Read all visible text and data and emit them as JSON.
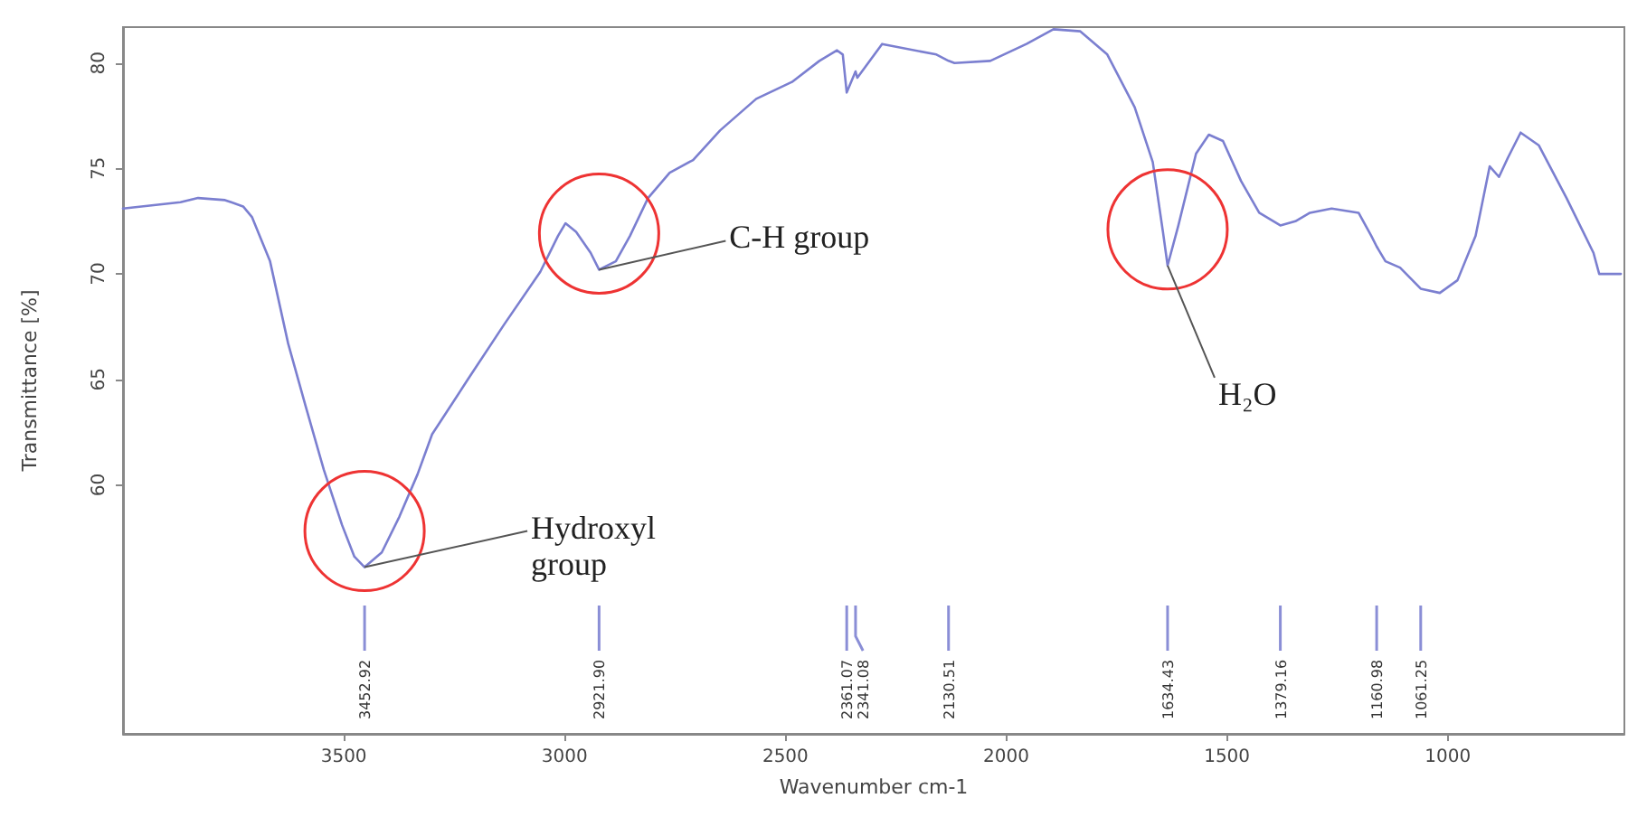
{
  "chart_data": {
    "type": "line",
    "xlabel": "Wavenumber cm-1",
    "ylabel": "Transmittance [%]",
    "xlim": [
      4000,
      600
    ],
    "xticks": [
      3500,
      3000,
      2500,
      2000,
      1500,
      1000
    ],
    "ylim": [
      48.2,
      81.7
    ],
    "yticks": [
      60,
      65,
      70,
      75,
      80
    ],
    "grid": false,
    "marker": "none",
    "line_style": "solid",
    "series": [
      {
        "color": "#7b7fd0",
        "x": [
          4000,
          3870,
          3830,
          3769,
          3728,
          3708,
          3667,
          3626,
          3586,
          3545,
          3504,
          3476,
          3452.92,
          3414,
          3374,
          3333,
          3300,
          3219,
          3137,
          3055,
          3015,
          2998,
          2974,
          2941,
          2921.9,
          2884,
          2852,
          2811,
          2762,
          2709,
          2648,
          2566,
          2485,
          2423,
          2383,
          2370,
          2361.07,
          2341.08,
          2337,
          2281,
          2158,
          2130.51,
          2117,
          2036,
          1954,
          1893,
          1832,
          1771,
          1709,
          1668,
          1645,
          1634.43,
          1610,
          1570,
          1541,
          1509,
          1468,
          1427,
          1379.16,
          1345,
          1312,
          1263,
          1202,
          1173,
          1160.98,
          1141,
          1108,
          1061.25,
          1018,
          978,
          937,
          905,
          884,
          864,
          835,
          794,
          731,
          670,
          657,
          608
        ],
        "values": [
          73.1,
          73.4,
          73.6,
          73.5,
          73.2,
          72.7,
          70.6,
          66.7,
          63.7,
          60.7,
          58.1,
          56.6,
          56.1,
          56.8,
          58.5,
          60.5,
          62.4,
          65.0,
          67.6,
          70.1,
          71.8,
          72.4,
          72.0,
          71.0,
          70.2,
          70.6,
          71.8,
          73.6,
          74.8,
          75.4,
          76.8,
          78.3,
          79.1,
          80.1,
          80.6,
          80.4,
          78.6,
          79.6,
          79.3,
          80.9,
          80.4,
          80.1,
          80.0,
          80.1,
          80.9,
          81.6,
          81.5,
          80.4,
          77.9,
          75.3,
          72.0,
          70.4,
          72.3,
          75.7,
          76.6,
          76.3,
          74.4,
          72.9,
          72.3,
          72.5,
          72.9,
          73.1,
          72.9,
          71.8,
          71.3,
          70.6,
          70.3,
          69.3,
          69.1,
          69.7,
          71.8,
          75.1,
          74.6,
          75.5,
          76.7,
          76.1,
          73.6,
          71.0,
          70.0,
          70.0
        ]
      }
    ],
    "annotations": [
      {
        "text": "Hydroxyl group",
        "x": 3452.92,
        "y": 56.1
      },
      {
        "text": "C-H group",
        "x": 2921.9,
        "y": 70.2
      },
      {
        "text": "H₂O",
        "x": 1634.43,
        "y": 70.4
      },
      {
        "text": "3452.92",
        "x": 3452.92
      },
      {
        "text": "2921.90",
        "x": 2921.9
      },
      {
        "text": "2361.07",
        "x": 2361.07
      },
      {
        "text": "2341.08",
        "x": 2341.08
      },
      {
        "text": "2130.51",
        "x": 2130.51
      },
      {
        "text": "1634.43",
        "x": 1634.43
      },
      {
        "text": "1379.16",
        "x": 1379.16
      },
      {
        "text": "1160.98",
        "x": 1160.98
      },
      {
        "text": "1061.25",
        "x": 1061.25
      }
    ]
  }
}
